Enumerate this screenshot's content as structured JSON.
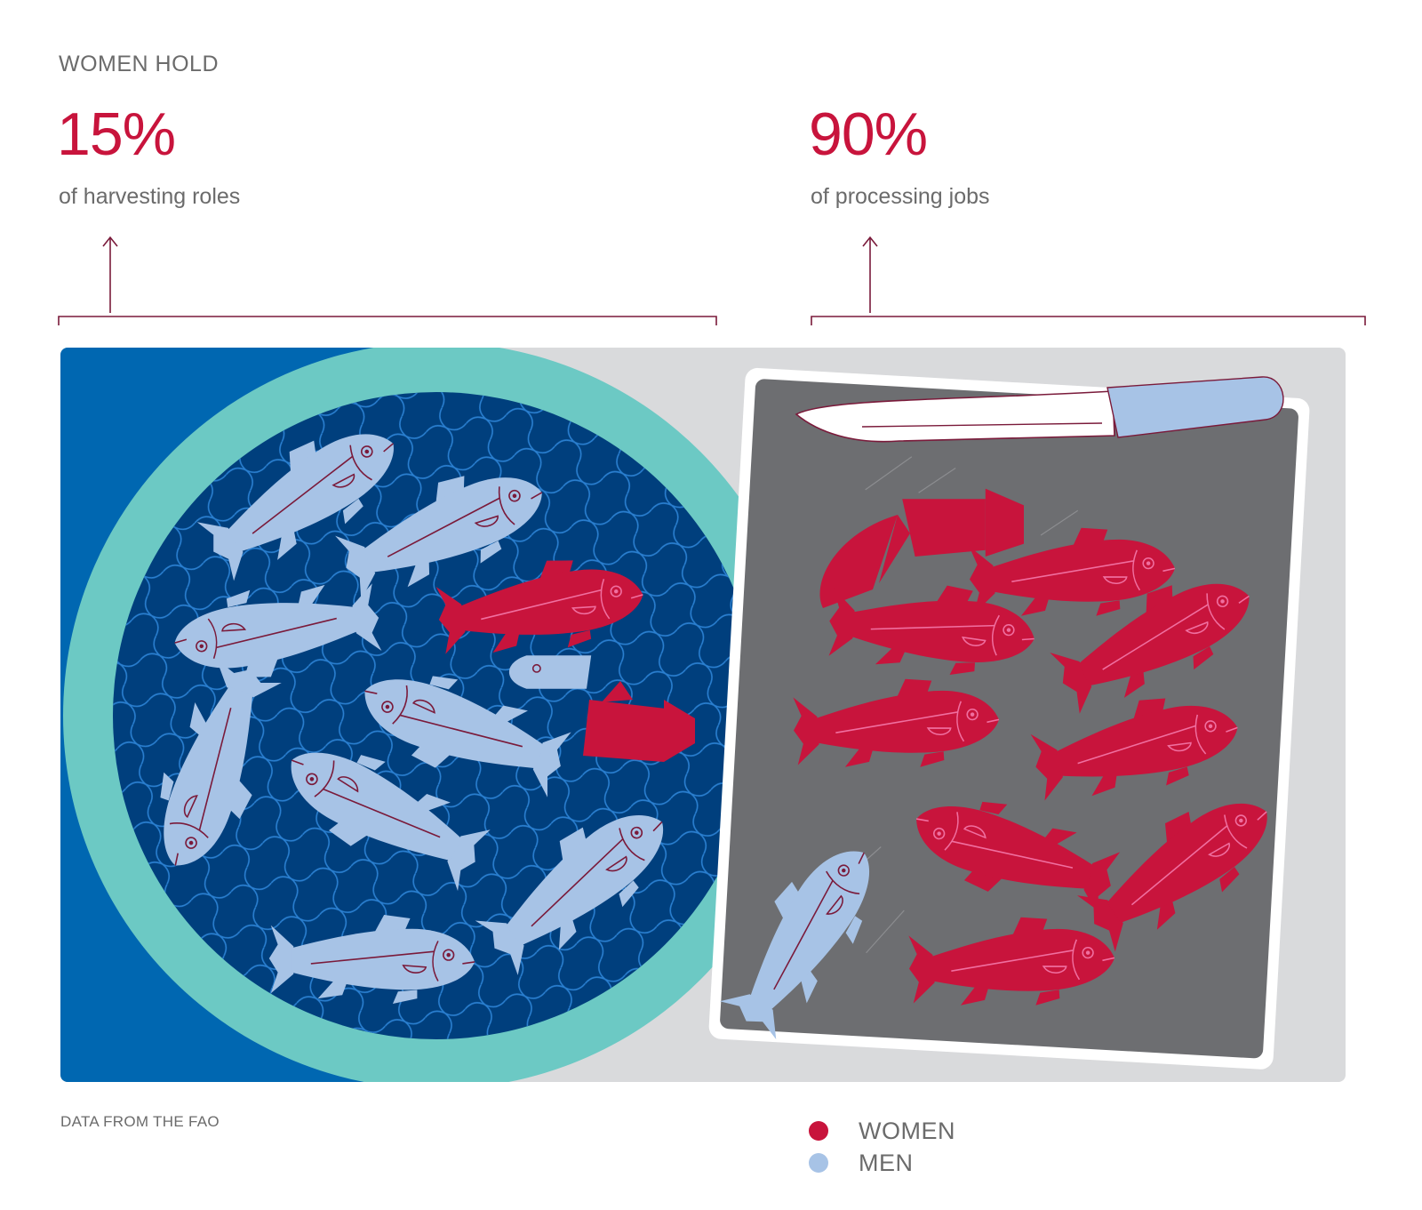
{
  "header": {
    "eyebrow": "WOMEN HOLD"
  },
  "stats": [
    {
      "value": "15%",
      "label": "of harvesting roles"
    },
    {
      "value": "90%",
      "label": "of processing jobs"
    }
  ],
  "footer": {
    "source": "DATA FROM THE FAO"
  },
  "legend": {
    "items": [
      {
        "label": "WOMEN",
        "color": "#c8143c"
      },
      {
        "label": "MEN",
        "color": "#a7c3e6"
      }
    ]
  },
  "colors": {
    "accent": "#c8143c",
    "women": "#c8143c",
    "men": "#a7c3e6",
    "ocean": "#0067b1",
    "net": "#003f7d",
    "ring": "#6cc9c4",
    "table": "#d9dadc",
    "board": "#6d6e71",
    "connector": "#7a1a3a"
  }
}
